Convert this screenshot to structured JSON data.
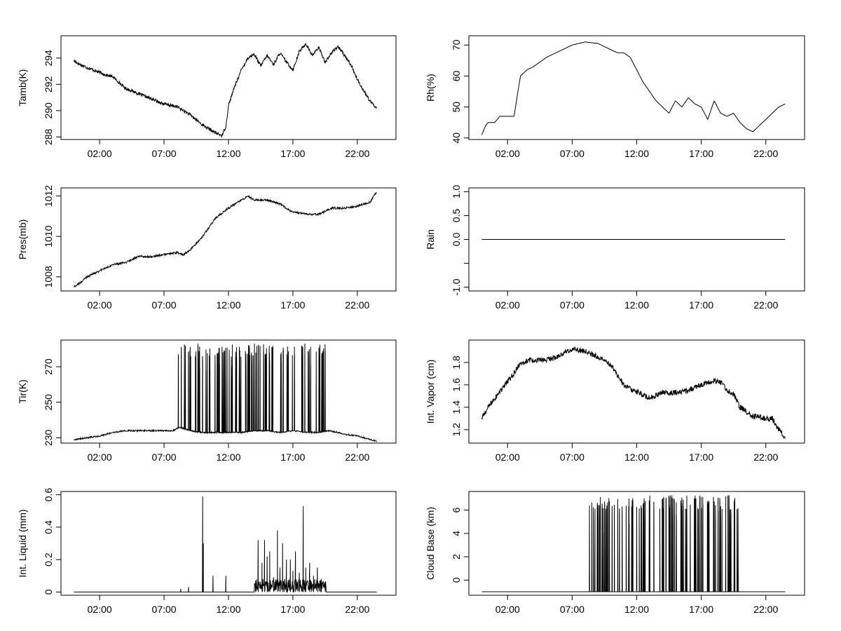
{
  "chart_data": [
    {
      "type": "line",
      "ylabel": "Tamb(K)",
      "x_ticks": [
        "02:00",
        "07:00",
        "12:00",
        "17:00",
        "22:00"
      ],
      "x_tick_hours": [
        2,
        7,
        12,
        17,
        22
      ],
      "xlim_hours": [
        -1,
        25
      ],
      "ylim": [
        287.8,
        295.7
      ],
      "y_ticks": [
        288,
        290,
        292,
        294
      ],
      "series": [
        {
          "x": [
            0,
            0.5,
            1,
            1.5,
            2,
            2.5,
            3,
            4,
            5,
            6,
            7,
            8,
            9,
            10,
            11,
            11.5,
            11.8,
            12,
            12.5,
            13,
            13.5,
            14,
            14.5,
            15,
            15.5,
            16,
            16.5,
            17,
            17.5,
            18,
            18.5,
            19,
            19.5,
            20,
            20.5,
            21,
            21.5,
            22,
            22.5,
            23,
            23.5
          ],
          "y": [
            293.8,
            293.5,
            293.3,
            293.1,
            292.9,
            292.7,
            292.6,
            291.7,
            291.3,
            290.9,
            290.5,
            290.3,
            289.7,
            288.9,
            288.3,
            288.1,
            288.8,
            290.4,
            291.9,
            293.1,
            294.0,
            294.3,
            293.4,
            294.2,
            293.5,
            294.4,
            293.7,
            293.1,
            294.5,
            295.1,
            294.2,
            294.8,
            293.7,
            294.4,
            294.9,
            294.2,
            293.5,
            292.4,
            291.5,
            290.7,
            290.2
          ],
          "noise": 0.12
        }
      ]
    },
    {
      "type": "line",
      "ylabel": "Rh(%)",
      "x_ticks": [
        "02:00",
        "07:00",
        "12:00",
        "17:00",
        "22:00"
      ],
      "x_tick_hours": [
        2,
        7,
        12,
        17,
        22
      ],
      "xlim_hours": [
        -1,
        25
      ],
      "ylim": [
        39.5,
        73
      ],
      "y_ticks": [
        40,
        50,
        60,
        70
      ],
      "series": [
        {
          "x": [
            0,
            0.3,
            0.5,
            1,
            1.4,
            2,
            2.5,
            2.8,
            3,
            3.5,
            4,
            5,
            6,
            7,
            8,
            9,
            10,
            10.5,
            11,
            11.5,
            12,
            12.5,
            13,
            13.5,
            14,
            14.5,
            15,
            15.5,
            16,
            16.5,
            17,
            17.5,
            18,
            18.5,
            19,
            19.5,
            20,
            20.5,
            21,
            21.5,
            22,
            22.5,
            23,
            23.5
          ],
          "y": [
            41,
            44,
            45,
            45,
            47,
            47,
            47,
            55,
            60,
            62,
            63,
            66,
            68,
            70,
            71,
            70.5,
            68.5,
            67.5,
            67.5,
            66,
            62,
            58,
            55,
            52,
            50,
            48,
            52,
            50,
            53,
            51,
            50,
            46,
            52,
            48,
            47,
            48,
            45,
            43,
            42,
            44,
            46,
            48,
            50,
            51
          ]
        }
      ]
    },
    {
      "type": "line",
      "ylabel": "Pres(mb)",
      "x_ticks": [
        "02:00",
        "07:00",
        "12:00",
        "17:00",
        "22:00"
      ],
      "x_tick_hours": [
        2,
        7,
        12,
        17,
        22
      ],
      "xlim_hours": [
        -1,
        25
      ],
      "ylim": [
        1007.3,
        1012.4
      ],
      "y_ticks": [
        1008,
        1010,
        1012
      ],
      "series": [
        {
          "x": [
            0,
            0.5,
            1,
            2,
            3,
            4,
            5,
            6,
            7,
            8,
            8.5,
            9,
            10,
            11,
            12,
            12.5,
            13,
            13.5,
            14,
            15,
            16,
            17,
            18,
            19,
            20,
            21,
            22,
            23,
            23.5
          ],
          "y": [
            1007.5,
            1007.7,
            1008.0,
            1008.3,
            1008.6,
            1008.7,
            1009.0,
            1009.0,
            1009.1,
            1009.2,
            1009.1,
            1009.3,
            1010.0,
            1010.9,
            1011.4,
            1011.6,
            1011.8,
            1012.0,
            1011.8,
            1011.8,
            1011.6,
            1011.2,
            1011.1,
            1011.1,
            1011.4,
            1011.4,
            1011.5,
            1011.7,
            1012.2
          ],
          "noise": 0.05
        }
      ]
    },
    {
      "type": "line",
      "ylabel": "Rain",
      "x_ticks": [
        "02:00",
        "07:00",
        "12:00",
        "17:00",
        "22:00"
      ],
      "x_tick_hours": [
        2,
        7,
        12,
        17,
        22
      ],
      "xlim_hours": [
        -1,
        25
      ],
      "ylim": [
        -1.08,
        1.08
      ],
      "y_ticks": [
        -1.0,
        -0.5,
        0.0,
        0.5,
        1.0
      ],
      "y_tick_labels": [
        "-1.0",
        "",
        "0.0",
        "0.5",
        "1.0"
      ],
      "series": [
        {
          "x": [
            0,
            23.5
          ],
          "y": [
            0,
            0
          ]
        }
      ]
    },
    {
      "type": "line",
      "ylabel": "Tir(K)",
      "x_ticks": [
        "02:00",
        "07:00",
        "12:00",
        "17:00",
        "22:00"
      ],
      "x_tick_hours": [
        2,
        7,
        12,
        17,
        22
      ],
      "xlim_hours": [
        -1,
        25
      ],
      "ylim": [
        227,
        285
      ],
      "y_ticks": [
        230,
        250,
        270
      ],
      "series": [
        {
          "x": [
            0,
            1,
            2,
            3,
            4,
            5,
            6,
            7,
            7.7,
            8.2,
            9,
            10,
            11,
            12,
            13,
            14,
            15,
            16,
            17,
            18,
            19,
            19.8,
            20.5,
            21,
            22,
            23,
            23.5
          ],
          "y": [
            229,
            230,
            231,
            233,
            234,
            234,
            234,
            234,
            234,
            236,
            234,
            233,
            233,
            233,
            233,
            234,
            234,
            233,
            234,
            233,
            233,
            234,
            233,
            232,
            231,
            229,
            228
          ],
          "noise": 0.4,
          "spikes": {
            "start": 8.0,
            "end": 19.8,
            "top": 283,
            "count": 95
          }
        }
      ]
    },
    {
      "type": "line",
      "ylabel": "Int. Vapor (cm)",
      "x_ticks": [
        "02:00",
        "07:00",
        "12:00",
        "17:00",
        "22:00"
      ],
      "x_tick_hours": [
        2,
        7,
        12,
        17,
        22
      ],
      "xlim_hours": [
        -1,
        25
      ],
      "ylim": [
        1.08,
        2.0
      ],
      "y_ticks": [
        1.2,
        1.4,
        1.6,
        1.8
      ],
      "series": [
        {
          "x": [
            0,
            0.5,
            1,
            1.5,
            2,
            2.5,
            3,
            4,
            5,
            6,
            7,
            8,
            9,
            10,
            11,
            12,
            13,
            14,
            15,
            16,
            17,
            18,
            18.5,
            19,
            19.5,
            20,
            21,
            22,
            22.5,
            23,
            23.5
          ],
          "y": [
            1.3,
            1.4,
            1.48,
            1.55,
            1.63,
            1.7,
            1.8,
            1.82,
            1.82,
            1.86,
            1.92,
            1.9,
            1.85,
            1.78,
            1.6,
            1.54,
            1.48,
            1.53,
            1.53,
            1.55,
            1.6,
            1.64,
            1.62,
            1.55,
            1.52,
            1.4,
            1.32,
            1.3,
            1.3,
            1.2,
            1.13
          ],
          "noise": 0.025
        }
      ]
    },
    {
      "type": "line",
      "ylabel": "Int. Liquid (mm)",
      "x_ticks": [
        "02:00",
        "07:00",
        "12:00",
        "17:00",
        "22:00"
      ],
      "x_tick_hours": [
        2,
        7,
        12,
        17,
        22
      ],
      "xlim_hours": [
        -1,
        25
      ],
      "ylim": [
        -0.02,
        0.62
      ],
      "y_ticks": [
        0.0,
        0.2,
        0.4,
        0.6
      ],
      "series": [
        {
          "x": [
            0,
            23.5
          ],
          "y": [
            0,
            0
          ],
          "peaks": [
            [
              8.3,
              0.02
            ],
            [
              8.9,
              0.03
            ],
            [
              10.0,
              0.59
            ],
            [
              10.05,
              0.3
            ],
            [
              10.8,
              0.1
            ],
            [
              11.8,
              0.1
            ],
            [
              14.1,
              0.07
            ],
            [
              14.3,
              0.32
            ],
            [
              14.6,
              0.18
            ],
            [
              14.8,
              0.32
            ],
            [
              15.0,
              0.22
            ],
            [
              15.2,
              0.25
            ],
            [
              15.5,
              0.09
            ],
            [
              15.8,
              0.38
            ],
            [
              16.0,
              0.15
            ],
            [
              16.2,
              0.3
            ],
            [
              16.5,
              0.2
            ],
            [
              16.8,
              0.2
            ],
            [
              17.0,
              0.13
            ],
            [
              17.2,
              0.25
            ],
            [
              17.5,
              0.12
            ],
            [
              17.8,
              0.53
            ],
            [
              18.0,
              0.15
            ],
            [
              18.3,
              0.18
            ],
            [
              18.6,
              0.1
            ],
            [
              18.9,
              0.15
            ],
            [
              19.2,
              0.08
            ],
            [
              19.5,
              0.03
            ]
          ],
          "low_noise": {
            "start": 14.0,
            "end": 19.6,
            "max": 0.08
          }
        }
      ]
    },
    {
      "type": "line",
      "ylabel": "Cloud Base (km)",
      "x_ticks": [
        "02:00",
        "07:00",
        "12:00",
        "17:00",
        "22:00"
      ],
      "x_tick_hours": [
        2,
        7,
        12,
        17,
        22
      ],
      "xlim_hours": [
        -1,
        25
      ],
      "ylim": [
        -1.3,
        7.6
      ],
      "y_ticks": [
        0,
        2,
        4,
        6
      ],
      "series": [
        {
          "x": [
            0,
            23.5
          ],
          "y": [
            -1,
            -1
          ],
          "spikes": {
            "start": 7.8,
            "end": 19.9,
            "base": -1,
            "top": 7.3,
            "count": 110
          }
        }
      ]
    }
  ]
}
